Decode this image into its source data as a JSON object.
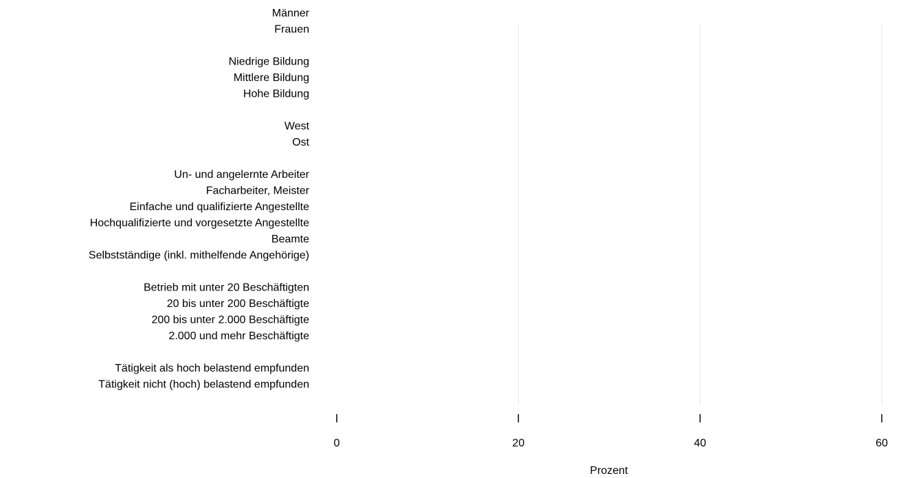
{
  "chart_data": {
    "type": "bar",
    "orientation": "horizontal",
    "categories": [
      "Männer",
      "Frauen",
      null,
      "Niedrige Bildung",
      "Mittlere Bildung",
      "Hohe Bildung",
      null,
      "West",
      "Ost",
      null,
      "Un- und angelernte Arbeiter",
      "Facharbeiter, Meister",
      "Einfache und qualifizierte Angestellte",
      "Hochqualifizierte und vorgesetzte Angestellte",
      "Beamte",
      "Selbstständige (inkl. mithelfende Angehörige)",
      null,
      "Betrieb mit unter 20 Beschäftigten",
      "20 bis unter 200 Beschäftigte",
      "200 bis unter 2.000 Beschäftigte",
      "2.000 und mehr Beschäftigte",
      null,
      "Tätigkeit als hoch belastend empfunden",
      "Tätigkeit nicht (hoch) belastend empfunden"
    ],
    "xlabel": "Prozent",
    "xlim": [
      0,
      60
    ],
    "xticks": [
      0,
      20,
      40,
      60
    ],
    "grid": true
  }
}
